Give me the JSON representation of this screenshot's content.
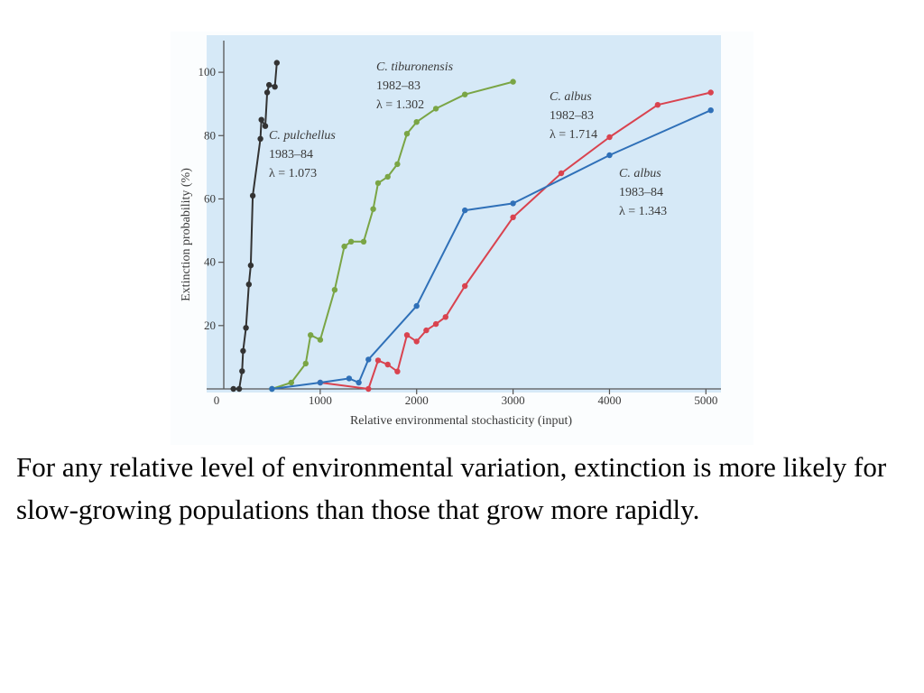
{
  "caption": "For any relative level of environmental variation, extinction is more likely for slow-growing populations than those that grow more rapidly.",
  "colors": {
    "plot_background": "#d6e9f7",
    "figure_background": "#fbfdfe",
    "axis": "#555555"
  },
  "chart_data": {
    "type": "line",
    "title": "",
    "xlabel": "Relative environmental stochasticity (input)",
    "ylabel": "Extinction probability (%)",
    "xlim": [
      0,
      5100
    ],
    "ylim": [
      0,
      110
    ],
    "xticks": [
      0,
      1000,
      2000,
      3000,
      4000,
      5000
    ],
    "xtick_labels": [
      "0",
      "1000",
      "2000",
      "3000",
      "4000",
      "5000"
    ],
    "yticks": [
      20,
      40,
      60,
      80,
      100
    ],
    "ytick_labels": [
      "20",
      "40",
      "60",
      "80",
      "100"
    ],
    "grid": false,
    "legend": "none",
    "series": [
      {
        "name": "C. pulchellus 1983–84",
        "color": "#333333",
        "lambda": "λ = 1.073",
        "label_lines": [
          "C. pulchellus",
          "1983–84",
          "λ = 1.073"
        ],
        "points": [
          [
            100,
            0
          ],
          [
            160,
            0
          ],
          [
            190,
            5.6
          ],
          [
            200,
            12
          ],
          [
            230,
            19.3
          ],
          [
            260,
            33
          ],
          [
            280,
            39
          ],
          [
            300,
            61
          ],
          [
            380,
            79
          ],
          [
            390,
            85
          ],
          [
            430,
            83
          ],
          [
            450,
            93.6
          ],
          [
            470,
            96
          ],
          [
            530,
            95.4
          ],
          [
            550,
            103
          ]
        ]
      },
      {
        "name": "C. tiburonensis 1982–83",
        "color": "#7aa545",
        "lambda": "λ = 1.302",
        "label_lines": [
          "C. tiburonensis",
          "1982–83",
          "λ = 1.302"
        ],
        "points": [
          [
            500,
            0
          ],
          [
            700,
            2
          ],
          [
            850,
            8
          ],
          [
            900,
            17
          ],
          [
            1000,
            15.5
          ],
          [
            1150,
            31.3
          ],
          [
            1250,
            45
          ],
          [
            1320,
            46.5
          ],
          [
            1450,
            46.5
          ],
          [
            1550,
            56.8
          ],
          [
            1600,
            65
          ],
          [
            1700,
            67
          ],
          [
            1800,
            71
          ],
          [
            1900,
            80.6
          ],
          [
            2000,
            84.3
          ],
          [
            2200,
            88.5
          ],
          [
            2500,
            93
          ],
          [
            3000,
            97
          ]
        ]
      },
      {
        "name": "C. albus 1982–83",
        "color": "#d9434f",
        "lambda": "λ = 1.714",
        "label_lines": [
          "C. albus",
          "1982–83",
          "λ = 1.714"
        ],
        "points": [
          [
            1000,
            2
          ],
          [
            1500,
            0
          ],
          [
            1600,
            9
          ],
          [
            1700,
            7.7
          ],
          [
            1800,
            5.5
          ],
          [
            1900,
            17
          ],
          [
            2000,
            15
          ],
          [
            2100,
            18.5
          ],
          [
            2200,
            20.5
          ],
          [
            2300,
            22.7
          ],
          [
            2500,
            32.5
          ],
          [
            3000,
            54.2
          ],
          [
            3500,
            68.1
          ],
          [
            4000,
            79.5
          ],
          [
            4500,
            89.7
          ],
          [
            5050,
            93.6
          ]
        ]
      },
      {
        "name": "C. albus 1983–84",
        "color": "#2f70b8",
        "lambda": "λ = 1.343",
        "label_lines": [
          "C. albus",
          "1983–84",
          "λ = 1.343"
        ],
        "points": [
          [
            500,
            0
          ],
          [
            1000,
            2
          ],
          [
            1300,
            3.3
          ],
          [
            1400,
            2
          ],
          [
            1500,
            9.3
          ],
          [
            2000,
            26.2
          ],
          [
            2500,
            56.4
          ],
          [
            3000,
            58.6
          ],
          [
            4000,
            73.8
          ],
          [
            5050,
            88
          ]
        ]
      }
    ]
  }
}
